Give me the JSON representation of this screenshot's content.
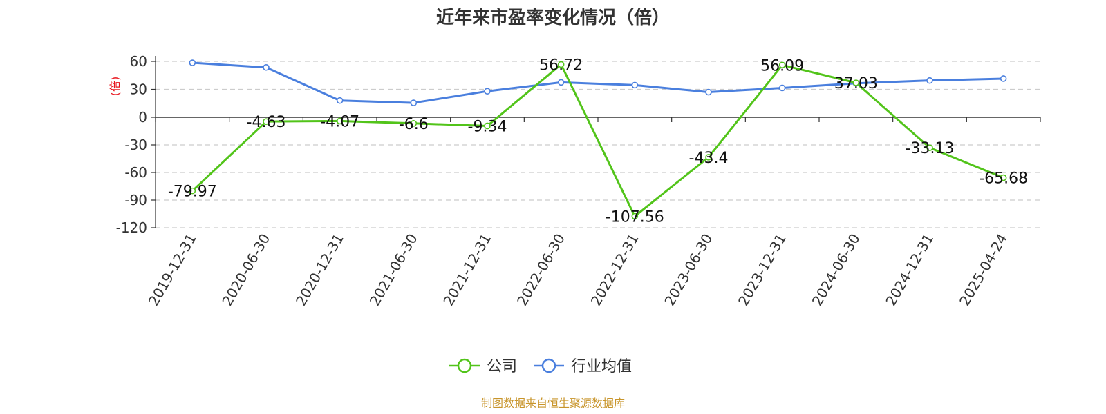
{
  "title": "近年来市盈率变化情况（倍）",
  "source": "制图数据来自恒生聚源数据库",
  "colors": {
    "company": "#52c41a",
    "industry": "#4a7fde",
    "unit": "#e8141c",
    "source": "#c8952b"
  },
  "chart_data": {
    "type": "line",
    "title": "近年来市盈率变化情况（倍）",
    "ylabel": "(倍)",
    "xlabel": "",
    "ylim": [
      -120,
      60
    ],
    "yticks": [
      60,
      30,
      0,
      -30,
      -60,
      -90,
      -120
    ],
    "grid": true,
    "legend_position": "bottom",
    "categories": [
      "2019-12-31",
      "2020-06-30",
      "2020-12-31",
      "2021-06-30",
      "2021-12-31",
      "2022-06-30",
      "2022-12-31",
      "2023-06-30",
      "2023-12-31",
      "2024-06-30",
      "2024-12-31",
      "2025-04-24"
    ],
    "series": [
      {
        "name": "公司",
        "color": "#52c41a",
        "labeled": true,
        "values": [
          -79.97,
          -4.63,
          -4.07,
          -6.6,
          -9.34,
          56.72,
          -107.56,
          -43.4,
          56.09,
          37.03,
          -33.13,
          -65.68
        ]
      },
      {
        "name": "行业均值",
        "color": "#4a7fde",
        "labeled": false,
        "values": [
          58.5,
          53.5,
          18.0,
          15.5,
          28.0,
          37.5,
          34.5,
          27.0,
          31.5,
          36.5,
          39.5,
          41.5
        ]
      }
    ]
  }
}
